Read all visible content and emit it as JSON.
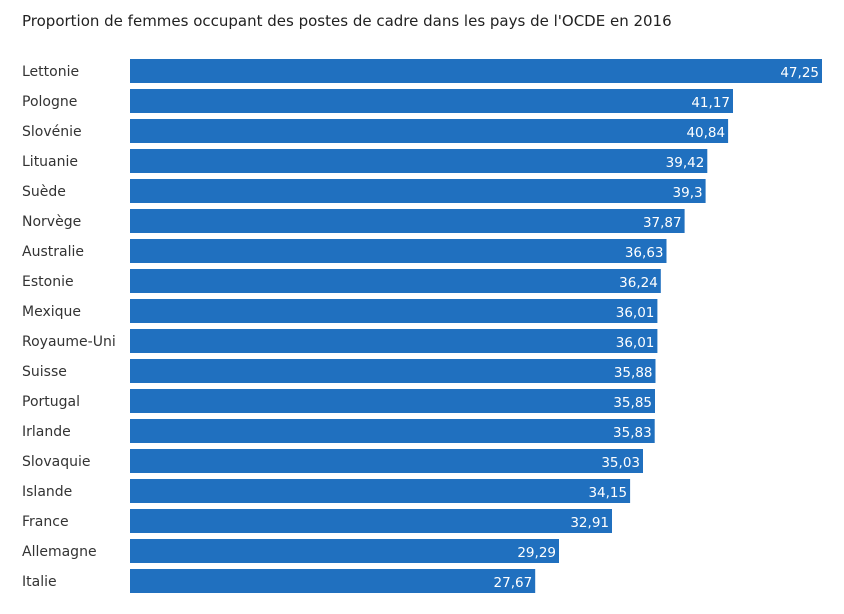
{
  "colors": {
    "bar": "#2070bf",
    "label": "#333333",
    "value_label": "#ffffff"
  },
  "chart_data": {
    "type": "bar",
    "orientation": "horizontal",
    "title": "Proportion de femmes occupant des postes de cadre dans les pays de l'OCDE en 2016",
    "xlabel": "",
    "ylabel": "",
    "xlim": [
      0,
      47.25
    ],
    "grid": false,
    "legend": "none",
    "categories": [
      "Lettonie",
      "Pologne",
      "Slovénie",
      "Lituanie",
      "Suède",
      "Norvège",
      "Australie",
      "Estonie",
      "Mexique",
      "Royaume-Uni",
      "Suisse",
      "Portugal",
      "Irlande",
      "Slovaquie",
      "Islande",
      "France",
      "Allemagne",
      "Italie"
    ],
    "values": [
      47.25,
      41.17,
      40.84,
      39.42,
      39.3,
      37.87,
      36.63,
      36.24,
      36.01,
      36.01,
      35.88,
      35.85,
      35.83,
      35.03,
      34.15,
      32.91,
      29.29,
      27.67
    ],
    "value_labels": [
      "47,25",
      "41,17",
      "40,84",
      "39,42",
      "39,3",
      "37,87",
      "36,63",
      "36,24",
      "36,01",
      "36,01",
      "35,88",
      "35,85",
      "35,83",
      "35,03",
      "34,15",
      "32,91",
      "29,29",
      "27,67"
    ]
  }
}
